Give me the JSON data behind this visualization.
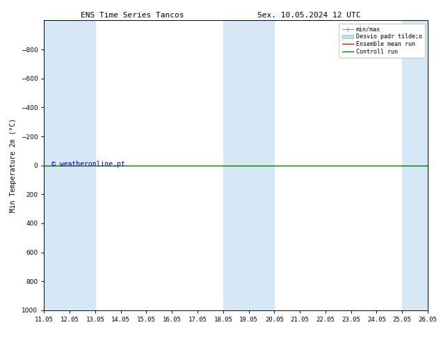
{
  "title_left": "ENS Time Series Tancos",
  "title_right": "Sex. 10.05.2024 12 UTC",
  "ylabel": "Min Temperature 2m (°C)",
  "xlim_start": 11.05,
  "xlim_end": 26.05,
  "ylim_bottom": 1000,
  "ylim_top": -1000,
  "yticks": [
    -800,
    -600,
    -400,
    -200,
    0,
    200,
    400,
    600,
    800,
    1000
  ],
  "xtick_labels": [
    "11.05",
    "12.05",
    "13.05",
    "14.05",
    "15.05",
    "16.05",
    "17.05",
    "18.05",
    "19.05",
    "20.05",
    "21.05",
    "22.05",
    "23.05",
    "24.05",
    "25.05",
    "26.05"
  ],
  "xtick_positions": [
    11.05,
    12.05,
    13.05,
    14.05,
    15.05,
    16.05,
    17.05,
    18.05,
    19.05,
    20.05,
    21.05,
    22.05,
    23.05,
    24.05,
    25.05,
    26.05
  ],
  "shaded_bands": [
    [
      11.05,
      12.05
    ],
    [
      12.05,
      13.05
    ],
    [
      18.05,
      19.05
    ],
    [
      19.05,
      20.05
    ],
    [
      25.05,
      26.05
    ]
  ],
  "shaded_color": "#d6e8f5",
  "control_run_y": 0,
  "control_run_color": "#008000",
  "ensemble_mean_color": "#ff0000",
  "watermark": "© weatheronline.pt",
  "watermark_color": "#0000cc",
  "background_color": "#ffffff",
  "legend_minmax_color": "#909090",
  "legend_desvio_color": "#c8dce8",
  "legend_desvio_edge": "#8cb4cc"
}
